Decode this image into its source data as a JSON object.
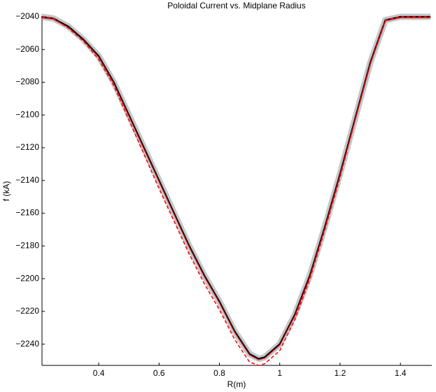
{
  "chart_data": {
    "type": "line",
    "title": "Poloidal Current vs. Midplane Radius",
    "x_label": "R(m)",
    "y_label": "f (kA)",
    "x": [
      0.21,
      0.25,
      0.3,
      0.35,
      0.4,
      0.45,
      0.5,
      0.55,
      0.6,
      0.65,
      0.7,
      0.75,
      0.8,
      0.85,
      0.9,
      0.93,
      0.95,
      1.0,
      1.05,
      1.1,
      1.15,
      1.2,
      1.25,
      1.3,
      1.35,
      1.4,
      1.45,
      1.5
    ],
    "series": [
      {
        "color": "#000000",
        "dash": false,
        "values": [
          -2040,
          -2041,
          -2046,
          -2054,
          -2064,
          -2080,
          -2100,
          -2120,
          -2140,
          -2160,
          -2180,
          -2198,
          -2214,
          -2232,
          -2246,
          -2249,
          -2248,
          -2240,
          -2222,
          -2198,
          -2168,
          -2136,
          -2102,
          -2068,
          -2042,
          -2040,
          -2040,
          -2040
        ]
      },
      {
        "color": "#ff0000",
        "dash": true,
        "values": [
          -2040,
          -2041,
          -2047,
          -2055,
          -2066,
          -2082,
          -2103,
          -2124,
          -2145,
          -2165,
          -2185,
          -2203,
          -2219,
          -2237,
          -2251,
          -2253,
          -2252,
          -2244,
          -2225,
          -2200,
          -2170,
          -2138,
          -2103,
          -2069,
          -2042,
          -2040,
          -2040,
          -2040
        ]
      }
    ],
    "xlim": [
      0.212,
      1.504
    ],
    "ylim": [
      -2253,
      -2040
    ],
    "xticks": [
      0.4,
      0.6,
      0.8,
      1,
      1.2,
      1.4
    ],
    "yticks": [
      {
        "value": -2040,
        "label": "−2040"
      },
      {
        "value": -2060,
        "label": "−2060"
      },
      {
        "value": -2080,
        "label": "−2080"
      },
      {
        "value": -2100,
        "label": "−2100"
      },
      {
        "value": -2120,
        "label": "−2120"
      },
      {
        "value": -2140,
        "label": "−2140"
      },
      {
        "value": -2160,
        "label": "−2160"
      },
      {
        "value": -2180,
        "label": "−2180"
      },
      {
        "value": -2200,
        "label": "−2200"
      },
      {
        "value": -2220,
        "label": "−2220"
      },
      {
        "value": -2240,
        "label": "−2240"
      }
    ]
  }
}
